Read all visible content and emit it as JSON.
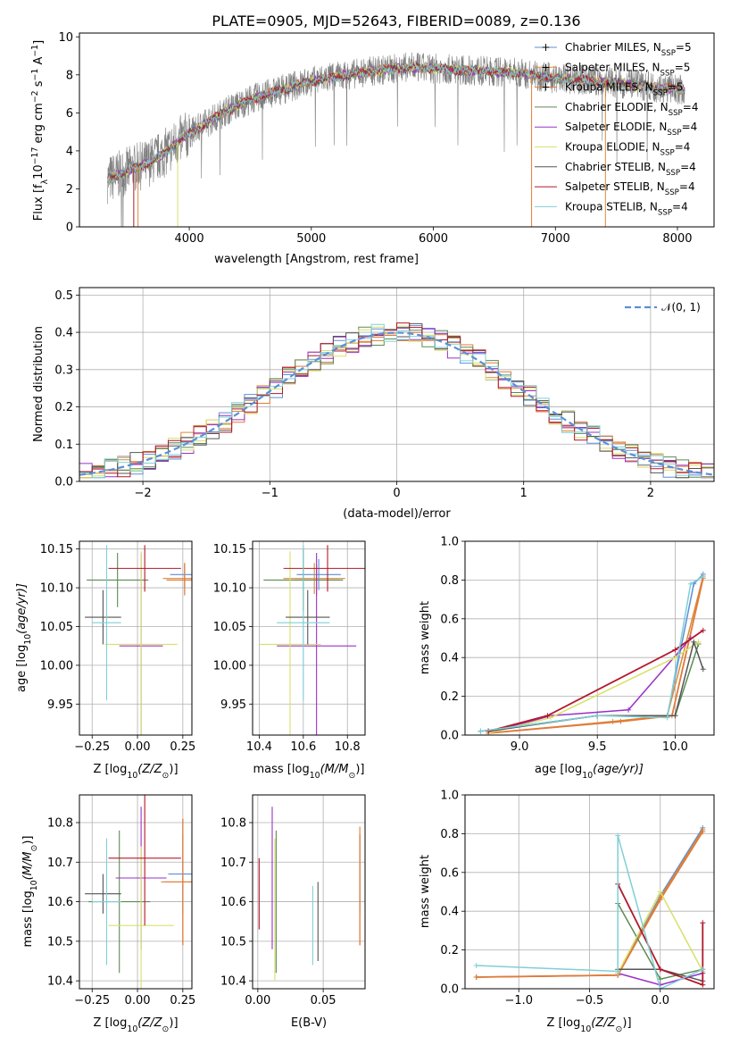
{
  "figure_title": "PLATE=0905, MJD=52643, FIBERID=0089, z=0.136",
  "colors": {
    "Chabrier MILES": "#5b8fd6",
    "Salpeter MILES": "#d98a3a",
    "Kroupa MILES": "#e07b39",
    "Chabrier ELODIE": "#5c8a55",
    "Salpeter ELODIE": "#9b30c8",
    "Kroupa ELODIE": "#d8e06a",
    "Chabrier STELIB": "#555555",
    "Salpeter STELIB": "#b2182b",
    "Kroupa STELIB": "#7fcfd6",
    "data": "#7f7f7f",
    "normal": "#5b8fd6"
  },
  "chart_data": [
    {
      "id": "spectrum",
      "type": "line",
      "title": "PLATE=0905, MJD=52643, FIBERID=0089, z=0.136",
      "xlabel": "wavelength [Angstrom, rest frame]",
      "ylabel_parts": [
        "Flux [f",
        "λ",
        "10",
        "−17",
        " erg cm",
        "−2",
        " s",
        "−1",
        " A",
        "−1",
        "]"
      ],
      "xlim": [
        3100,
        8300
      ],
      "ylim": [
        0,
        10.2
      ],
      "xticks": [
        4000,
        5000,
        6000,
        7000,
        8000
      ],
      "yticks": [
        0,
        2,
        4,
        6,
        8,
        10
      ],
      "xtick_labels": [
        "4000",
        "5000",
        "6000",
        "7000",
        "8000"
      ],
      "ytick_labels": [
        "0",
        "2",
        "4",
        "6",
        "8",
        "10"
      ],
      "continuum": {
        "x": [
          3330,
          3450,
          3550,
          3650,
          3800,
          3950,
          4100,
          4300,
          4500,
          4700,
          4900,
          5100,
          5300,
          5500,
          5800,
          6100,
          6400,
          6700,
          7000,
          7300,
          7600,
          7900,
          8060
        ],
        "y": [
          2.5,
          2.8,
          3.1,
          3.3,
          3.9,
          4.7,
          5.3,
          6.1,
          6.7,
          7.1,
          7.5,
          7.8,
          8.0,
          8.2,
          8.4,
          8.3,
          8.2,
          8.1,
          7.8,
          7.7,
          7.5,
          7.3,
          7.2
        ]
      },
      "legend_position": "upper-right",
      "legend": [
        {
          "base": "Chabrier MILES, N",
          "sub": "SSP",
          "tail": "=5"
        },
        {
          "base": "Salpeter MILES, N",
          "sub": "SSP",
          "tail": "=5"
        },
        {
          "base": "Kroupa MILES, N",
          "sub": "SSP",
          "tail": "=5"
        },
        {
          "base": "Chabrier ELODIE, N",
          "sub": "SSP",
          "tail": "=4"
        },
        {
          "base": "Salpeter ELODIE, N",
          "sub": "SSP",
          "tail": "=4"
        },
        {
          "base": "Kroupa ELODIE, N",
          "sub": "SSP",
          "tail": "=4"
        },
        {
          "base": "Chabrier STELIB, N",
          "sub": "SSP",
          "tail": "=4"
        },
        {
          "base": "Salpeter STELIB, N",
          "sub": "SSP",
          "tail": "=4"
        },
        {
          "base": "Kroupa STELIB, N",
          "sub": "SSP",
          "tail": "=4"
        }
      ],
      "legend_keys": [
        "Chabrier MILES",
        "Salpeter MILES",
        "Kroupa MILES",
        "Chabrier ELODIE",
        "Salpeter ELODIE",
        "Kroupa ELODIE",
        "Chabrier STELIB",
        "Salpeter STELIB",
        "Kroupa STELIB"
      ]
    },
    {
      "id": "residuals",
      "type": "bar",
      "xlabel": "(data-model)/error",
      "ylabel": "Normed distribution",
      "xlim": [
        -2.5,
        2.5
      ],
      "ylim": [
        0,
        0.52
      ],
      "xticks": [
        -2,
        -1,
        0,
        1,
        2
      ],
      "yticks": [
        0,
        0.1,
        0.2,
        0.3,
        0.4,
        0.5
      ],
      "xtick_labels": [
        "−2",
        "−1",
        "0",
        "1",
        "2"
      ],
      "ytick_labels": [
        "0.0",
        "0.1",
        "0.2",
        "0.3",
        "0.4",
        "0.5"
      ],
      "grid": true,
      "legend_label": "𝒩(0, 1)",
      "legend_position": "upper-right"
    },
    {
      "id": "age_vs_Z",
      "type": "scatter",
      "xlabel_parts": [
        "Z [log",
        "10",
        "(Z/Z",
        "⊙",
        ")]"
      ],
      "ylabel_parts": [
        "age  [log",
        "10",
        "(age/yr)]"
      ],
      "xlim": [
        -0.32,
        0.3
      ],
      "ylim": [
        9.91,
        10.16
      ],
      "xticks": [
        -0.25,
        0,
        0.25
      ],
      "yticks": [
        9.95,
        10.0,
        10.05,
        10.1,
        10.15
      ],
      "xtick_labels": [
        "−0.25",
        "0.00",
        "0.25"
      ],
      "ytick_labels": [
        "9.95",
        "10.00",
        "10.05",
        "10.10",
        "10.15"
      ],
      "points": [
        {
          "key": "Chabrier MILES",
          "x": 0.26,
          "y": 10.117,
          "xerr": 0.08,
          "yerr": 0.015
        },
        {
          "key": "Salpeter MILES",
          "x": 0.26,
          "y": 10.112,
          "xerr": 0.12,
          "yerr": 0.02
        },
        {
          "key": "Kroupa MILES",
          "x": 0.26,
          "y": 10.11,
          "xerr": 0.1,
          "yerr": 0.02
        },
        {
          "key": "Chabrier ELODIE",
          "x": -0.11,
          "y": 10.11,
          "xerr": 0.17,
          "yerr": 0.035
        },
        {
          "key": "Salpeter ELODIE",
          "x": 0.02,
          "y": 10.025,
          "xerr": 0.12,
          "yerr": 0.12
        },
        {
          "key": "Kroupa ELODIE",
          "x": 0.02,
          "y": 10.027,
          "xerr": 0.2,
          "yerr": 0.12
        },
        {
          "key": "Chabrier STELIB",
          "x": -0.19,
          "y": 10.062,
          "xerr": 0.1,
          "yerr": 0.035
        },
        {
          "key": "Salpeter STELIB",
          "x": 0.04,
          "y": 10.125,
          "xerr": 0.2,
          "yerr": 0.03
        },
        {
          "key": "Kroupa STELIB",
          "x": -0.17,
          "y": 10.055,
          "xerr": 0.08,
          "yerr": 0.1
        }
      ]
    },
    {
      "id": "age_vs_mass",
      "type": "scatter",
      "xlabel_parts": [
        "mass [log",
        "10",
        "(M/M",
        "⊙",
        ")]"
      ],
      "xlim": [
        10.37,
        10.88
      ],
      "ylim": [
        9.91,
        10.16
      ],
      "xticks": [
        10.4,
        10.6,
        10.8
      ],
      "yticks": [
        9.95,
        10.0,
        10.05,
        10.1,
        10.15
      ],
      "xtick_labels": [
        "10.4",
        "10.6",
        "10.8"
      ],
      "ytick_labels": [
        "9.95",
        "10.00",
        "10.05",
        "10.10",
        "10.15"
      ],
      "points": [
        {
          "key": "Chabrier MILES",
          "x": 10.67,
          "y": 10.117,
          "xerr": 0.1,
          "yerr": 0.02
        },
        {
          "key": "Salpeter MILES",
          "x": 10.65,
          "y": 10.112,
          "xerr": 0.14,
          "yerr": 0.02
        },
        {
          "key": "Kroupa MILES",
          "x": 10.66,
          "y": 10.11,
          "xerr": 0.1,
          "yerr": 0.02
        },
        {
          "key": "Chabrier ELODIE",
          "x": 10.6,
          "y": 10.11,
          "xerr": 0.18,
          "yerr": 0.04
        },
        {
          "key": "Salpeter ELODIE",
          "x": 10.66,
          "y": 10.025,
          "xerr": 0.18,
          "yerr": 0.12
        },
        {
          "key": "Kroupa ELODIE",
          "x": 10.54,
          "y": 10.027,
          "xerr": 0.14,
          "yerr": 0.12
        },
        {
          "key": "Chabrier STELIB",
          "x": 10.62,
          "y": 10.062,
          "xerr": 0.1,
          "yerr": 0.035
        },
        {
          "key": "Salpeter STELIB",
          "x": 10.71,
          "y": 10.125,
          "xerr": 0.2,
          "yerr": 0.03
        },
        {
          "key": "Kroupa STELIB",
          "x": 10.6,
          "y": 10.055,
          "xerr": 0.12,
          "yerr": 0.1
        }
      ]
    },
    {
      "id": "weight_vs_age",
      "type": "line",
      "xlabel_parts": [
        "age  [log",
        "10",
        "(age/yr)]"
      ],
      "ylabel": "mass weight",
      "xlim": [
        8.65,
        10.25
      ],
      "ylim": [
        0,
        1.0
      ],
      "xticks": [
        9.0,
        9.5,
        10.0
      ],
      "yticks": [
        0,
        0.2,
        0.4,
        0.6,
        0.8,
        1.0
      ],
      "xtick_labels": [
        "9.0",
        "9.5",
        "10.0"
      ],
      "ytick_labels": [
        "0.0",
        "0.2",
        "0.4",
        "0.6",
        "0.8",
        "1.0"
      ],
      "grid": true,
      "series": [
        {
          "key": "Chabrier MILES",
          "x": [
            8.75,
            9.5,
            9.95,
            10.12,
            10.18
          ],
          "y": [
            0.02,
            0.1,
            0.1,
            0.78,
            0.83
          ]
        },
        {
          "key": "Salpeter MILES",
          "x": [
            8.8,
            9.6,
            9.95,
            10.18
          ],
          "y": [
            0.01,
            0.07,
            0.1,
            0.82
          ]
        },
        {
          "key": "Kroupa MILES",
          "x": [
            8.8,
            9.65,
            9.98,
            10.18
          ],
          "y": [
            0.01,
            0.07,
            0.1,
            0.81
          ]
        },
        {
          "key": "Chabrier ELODIE",
          "x": [
            8.75,
            9.5,
            10.0,
            10.15
          ],
          "y": [
            0.02,
            0.1,
            0.1,
            0.47
          ]
        },
        {
          "key": "Salpeter ELODIE",
          "x": [
            8.8,
            9.2,
            9.7,
            10.1
          ],
          "y": [
            0.01,
            0.1,
            0.13,
            0.5
          ]
        },
        {
          "key": "Kroupa ELODIE",
          "x": [
            8.8,
            9.2,
            10.0,
            10.15
          ],
          "y": [
            0.01,
            0.09,
            0.4,
            0.48
          ]
        },
        {
          "key": "Chabrier STELIB",
          "x": [
            8.8,
            9.5,
            10.0,
            10.12,
            10.18
          ],
          "y": [
            0.02,
            0.1,
            0.1,
            0.48,
            0.34
          ]
        },
        {
          "key": "Salpeter STELIB",
          "x": [
            8.8,
            9.18,
            10.0,
            10.18
          ],
          "y": [
            0.02,
            0.1,
            0.44,
            0.54
          ]
        },
        {
          "key": "Kroupa STELIB",
          "x": [
            8.75,
            9.5,
            9.95,
            10.1,
            10.18
          ],
          "y": [
            0.02,
            0.1,
            0.09,
            0.78,
            0.82
          ]
        }
      ]
    },
    {
      "id": "mass_vs_Z",
      "type": "scatter",
      "xlabel_parts": [
        "Z [log",
        "10",
        "(Z/Z",
        "⊙",
        ")]"
      ],
      "ylabel_parts": [
        "mass [log",
        "10",
        "(M/M",
        "⊙",
        ")]"
      ],
      "xlim": [
        -0.32,
        0.3
      ],
      "ylim": [
        10.38,
        10.87
      ],
      "xticks": [
        -0.25,
        0,
        0.25
      ],
      "yticks": [
        10.4,
        10.5,
        10.6,
        10.7,
        10.8
      ],
      "xtick_labels": [
        "−0.25",
        "0.00",
        "0.25"
      ],
      "ytick_labels": [
        "10.4",
        "10.5",
        "10.6",
        "10.7",
        "10.8"
      ],
      "points": [
        {
          "key": "Chabrier MILES",
          "x": 0.25,
          "y": 10.67,
          "xerr": 0.08,
          "yerr": 0.1
        },
        {
          "key": "Salpeter MILES",
          "x": 0.25,
          "y": 10.65,
          "xerr": 0.12,
          "yerr": 0.16
        },
        {
          "key": "Kroupa MILES",
          "x": 0.25,
          "y": 10.65,
          "xerr": 0.1,
          "yerr": 0.16
        },
        {
          "key": "Chabrier ELODIE",
          "x": -0.1,
          "y": 10.6,
          "xerr": 0.17,
          "yerr": 0.18
        },
        {
          "key": "Salpeter ELODIE",
          "x": 0.02,
          "y": 10.66,
          "xerr": 0.14,
          "yerr": 0.18
        },
        {
          "key": "Kroupa ELODIE",
          "x": 0.02,
          "y": 10.54,
          "xerr": 0.18,
          "yerr": 0.2
        },
        {
          "key": "Chabrier STELIB",
          "x": -0.19,
          "y": 10.62,
          "xerr": 0.1,
          "yerr": 0.05
        },
        {
          "key": "Salpeter STELIB",
          "x": 0.04,
          "y": 10.71,
          "xerr": 0.2,
          "yerr": 0.17
        },
        {
          "key": "Kroupa STELIB",
          "x": -0.17,
          "y": 10.6,
          "xerr": 0.08,
          "yerr": 0.16
        }
      ]
    },
    {
      "id": "mass_vs_EBV",
      "type": "scatter",
      "xlabel": "E(B-V)",
      "xlim": [
        -0.004,
        0.082
      ],
      "ylim": [
        10.38,
        10.87
      ],
      "xticks": [
        0,
        0.05
      ],
      "yticks": [
        10.4,
        10.5,
        10.6,
        10.7,
        10.8
      ],
      "xtick_labels": [
        "0.00",
        "0.05"
      ],
      "ytick_labels": [
        "10.4",
        "10.5",
        "10.6",
        "10.7",
        "10.8"
      ],
      "points": [
        {
          "key": "Chabrier MILES",
          "x": 0.078,
          "y": 10.67,
          "yerr": 0.1
        },
        {
          "key": "Salpeter MILES",
          "x": 0.078,
          "y": 10.63,
          "yerr": 0.14
        },
        {
          "key": "Kroupa MILES",
          "x": 0.078,
          "y": 10.64,
          "yerr": 0.15
        },
        {
          "key": "Chabrier ELODIE",
          "x": 0.014,
          "y": 10.6,
          "yerr": 0.18
        },
        {
          "key": "Salpeter ELODIE",
          "x": 0.011,
          "y": 10.66,
          "yerr": 0.18
        },
        {
          "key": "Kroupa ELODIE",
          "x": 0.013,
          "y": 10.58,
          "yerr": 0.18
        },
        {
          "key": "Chabrier STELIB",
          "x": 0.046,
          "y": 10.55,
          "yerr": 0.1
        },
        {
          "key": "Salpeter STELIB",
          "x": 0.001,
          "y": 10.62,
          "yerr": 0.09
        },
        {
          "key": "Kroupa STELIB",
          "x": 0.042,
          "y": 10.54,
          "yerr": 0.1
        }
      ]
    },
    {
      "id": "weight_vs_Z",
      "type": "line",
      "xlabel_parts": [
        "Z [log",
        "10",
        "(Z/Z",
        "⊙",
        ")]"
      ],
      "ylabel": "mass weight",
      "xlim": [
        -1.38,
        0.38
      ],
      "ylim": [
        0,
        1.0
      ],
      "xticks": [
        -1.0,
        -0.5,
        0.0
      ],
      "yticks": [
        0,
        0.2,
        0.4,
        0.6,
        0.8,
        1.0
      ],
      "xtick_labels": [
        "−1.0",
        "−0.5",
        "0.0"
      ],
      "ytick_labels": [
        "0.0",
        "0.2",
        "0.4",
        "0.6",
        "0.8",
        "1.0"
      ],
      "grid": true,
      "series": [
        {
          "key": "Chabrier MILES",
          "x": [
            -1.3,
            -0.3,
            0.0,
            0.3
          ],
          "y": [
            0.06,
            0.07,
            0.48,
            0.83
          ]
        },
        {
          "key": "Salpeter MILES",
          "x": [
            -1.3,
            -0.3,
            0.0,
            0.3
          ],
          "y": [
            0.06,
            0.07,
            0.47,
            0.82
          ]
        },
        {
          "key": "Kroupa MILES",
          "x": [
            -1.3,
            -0.3,
            0.0,
            0.3
          ],
          "y": [
            0.06,
            0.07,
            0.46,
            0.81
          ]
        },
        {
          "key": "Chabrier ELODIE",
          "x": [
            -0.3,
            0.0,
            0.3
          ],
          "y": [
            0.44,
            0.05,
            0.1
          ]
        },
        {
          "key": "Salpeter ELODIE",
          "x": [
            -0.3,
            0.0,
            0.3
          ],
          "y": [
            0.08,
            0.02,
            0.08
          ]
        },
        {
          "key": "Kroupa ELODIE",
          "x": [
            -0.3,
            0.0,
            0.3
          ],
          "y": [
            0.08,
            0.5,
            0.09
          ]
        },
        {
          "key": "Chabrier STELIB",
          "x": [
            -0.3,
            0.0,
            0.3
          ],
          "y": [
            0.1,
            0.1,
            0.04
          ]
        },
        {
          "key": "Salpeter STELIB",
          "x": [
            -0.3,
            0.0,
            0.3,
            0.3
          ],
          "y": [
            0.54,
            0.1,
            0.02,
            0.34
          ]
        },
        {
          "key": "Kroupa STELIB",
          "x": [
            -1.3,
            -0.3,
            -0.3,
            0.0,
            0.3
          ],
          "y": [
            0.12,
            0.09,
            0.79,
            0.0,
            0.1
          ]
        }
      ]
    }
  ]
}
